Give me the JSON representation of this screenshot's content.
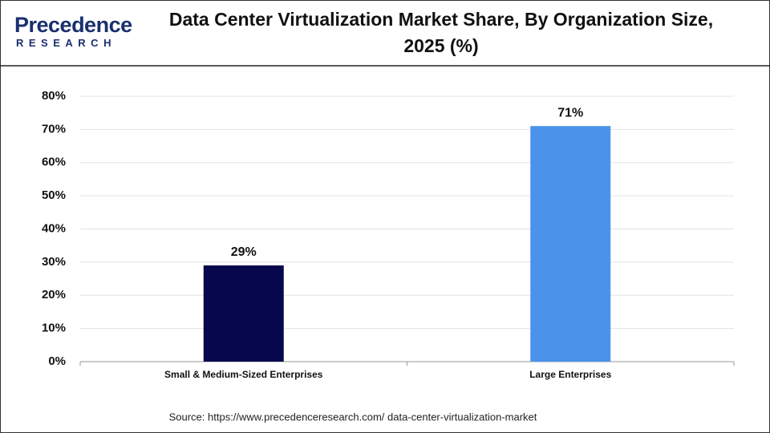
{
  "logo": {
    "name": "Precedence",
    "tagline": "RESEARCH"
  },
  "chart_data": {
    "type": "bar",
    "title": "Data Center Virtualization Market Share, By Organization Size, 2025 (%)",
    "categories": [
      "Small & Medium-Sized Enterprises",
      "Large Enterprises"
    ],
    "values": [
      29,
      71
    ],
    "value_labels": [
      "29%",
      "71%"
    ],
    "colors": [
      "#07074b",
      "#4a92ea"
    ],
    "ylim": [
      0,
      80
    ],
    "yticks": [
      {
        "value": 0,
        "label": "0%"
      },
      {
        "value": 10,
        "label": "10%"
      },
      {
        "value": 20,
        "label": "20%"
      },
      {
        "value": 30,
        "label": "30%"
      },
      {
        "value": 40,
        "label": "40%"
      },
      {
        "value": 50,
        "label": "50%"
      },
      {
        "value": 60,
        "label": "60%"
      },
      {
        "value": 70,
        "label": "70%"
      },
      {
        "value": 80,
        "label": "80%"
      }
    ],
    "grid": true,
    "source": "Source: https://www.precedenceresearch.com/ data-center-virtualization-market"
  }
}
